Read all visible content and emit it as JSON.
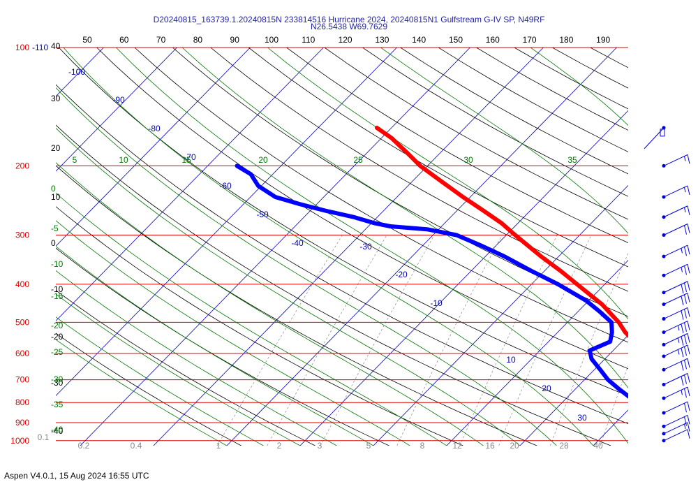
{
  "title_line1": "D20240815_163739.1.20240815N 233814516 Hurricane 2024, 20240815N1 Gulfstream G-IV SP, N49RF",
  "title_line2": "N26.5438 W69.7629",
  "footer": "Aspen V4.0.1, 15 Aug 2024  16:55 UTC",
  "colors": {
    "isobar": "#dd0000",
    "isotherm": "#0000bb",
    "dry_adiabat": "#000000",
    "moist_adiabat": "#007700",
    "mixing_ratio": "#888888",
    "temperature_trace": "#ff0000",
    "dewpoint_trace": "#0000ff",
    "wind_barb": "#0000dd"
  },
  "chart_data": {
    "type": "skew-t",
    "x_axis_top_labels": [
      "50",
      "60",
      "70",
      "80",
      "90",
      "100",
      "110",
      "120",
      "130",
      "140",
      "150",
      "160",
      "170",
      "180",
      "190"
    ],
    "isobars": [
      {
        "p": 100,
        "label": "100",
        "h_label": "-110"
      },
      {
        "p": 200,
        "label": "200"
      },
      {
        "p": 300,
        "label": "300"
      },
      {
        "p": 400,
        "label": "400"
      },
      {
        "p": 500,
        "label": "500"
      },
      {
        "p": 600,
        "label": "600"
      },
      {
        "p": 700,
        "label": "700"
      },
      {
        "p": 800,
        "label": "800"
      },
      {
        "p": 900,
        "label": "900"
      },
      {
        "p": 1000,
        "label": "1000"
      }
    ],
    "isotherm_labels": [
      {
        "t": -100,
        "label": "-100"
      },
      {
        "t": -90,
        "label": "-90"
      },
      {
        "t": -80,
        "label": "-80"
      },
      {
        "t": -70,
        "label": "-70"
      },
      {
        "t": -60,
        "label": "-60"
      },
      {
        "t": -50,
        "label": "-50"
      },
      {
        "t": -40,
        "label": "-40"
      },
      {
        "t": -30,
        "label": "-30"
      },
      {
        "t": -20,
        "label": "-20"
      },
      {
        "t": -10,
        "label": "-10"
      },
      {
        "t": 10,
        "label": "10"
      },
      {
        "t": 20,
        "label": "20"
      },
      {
        "t": 30,
        "label": "30"
      }
    ],
    "left_labels_black": [
      "40",
      "30",
      "20",
      "10",
      "0",
      "-10",
      "-20",
      "-30",
      "-40"
    ],
    "left_labels_green": [
      "0",
      "-5",
      "-10",
      "-15",
      "-20",
      "-25",
      "-30",
      "-35",
      "-40"
    ],
    "moist_adiabat_top_labels": [
      "5",
      "10",
      "15",
      "20",
      "25",
      "30",
      "35"
    ],
    "mixing_ratio_labels": [
      "0.1",
      "0.2",
      "0.4",
      "1",
      "2",
      "3",
      "5",
      "8",
      "12",
      "16",
      "20",
      "28",
      "40"
    ],
    "temperature": [
      {
        "p": 1000,
        "t": 26.0
      },
      {
        "p": 985,
        "t": 25.0
      },
      {
        "p": 960,
        "t": 24.4
      },
      {
        "p": 925,
        "t": 23.6
      },
      {
        "p": 900,
        "t": 21.8
      },
      {
        "p": 860,
        "t": 19.5
      },
      {
        "p": 820,
        "t": 17.4
      },
      {
        "p": 780,
        "t": 15.0
      },
      {
        "p": 740,
        "t": 12.4
      },
      {
        "p": 700,
        "t": 10.2
      },
      {
        "p": 660,
        "t": 8.0
      },
      {
        "p": 620,
        "t": 5.8
      },
      {
        "p": 600,
        "t": 5.0
      },
      {
        "p": 585,
        "t": 4.3
      },
      {
        "p": 570,
        "t": 2.6
      },
      {
        "p": 530,
        "t": -0.8
      },
      {
        "p": 500,
        "t": -3.0
      },
      {
        "p": 450,
        "t": -7.7
      },
      {
        "p": 400,
        "t": -13.8
      },
      {
        "p": 370,
        "t": -17.8
      },
      {
        "p": 340,
        "t": -22.4
      },
      {
        "p": 300,
        "t": -28.8
      },
      {
        "p": 280,
        "t": -32.2
      },
      {
        "p": 260,
        "t": -36.4
      },
      {
        "p": 240,
        "t": -41.0
      },
      {
        "p": 220,
        "t": -45.8
      },
      {
        "p": 200,
        "t": -51.0
      },
      {
        "p": 185,
        "t": -54.6
      },
      {
        "p": 170,
        "t": -58.6
      },
      {
        "p": 160,
        "t": -62.0
      }
    ],
    "dewpoint": [
      {
        "p": 1000,
        "t": 22.0
      },
      {
        "p": 985,
        "t": 21.0
      },
      {
        "p": 960,
        "t": 19.8
      },
      {
        "p": 930,
        "t": 18.6
      },
      {
        "p": 900,
        "t": 16.2
      },
      {
        "p": 860,
        "t": 14.0
      },
      {
        "p": 820,
        "t": 11.4
      },
      {
        "p": 780,
        "t": 8.8
      },
      {
        "p": 740,
        "t": 6.0
      },
      {
        "p": 700,
        "t": 3.2
      },
      {
        "p": 660,
        "t": 0.8
      },
      {
        "p": 620,
        "t": -1.8
      },
      {
        "p": 590,
        "t": -3.2
      },
      {
        "p": 560,
        "t": -1.6
      },
      {
        "p": 530,
        "t": -2.6
      },
      {
        "p": 500,
        "t": -4.0
      },
      {
        "p": 470,
        "t": -7.0
      },
      {
        "p": 440,
        "t": -10.4
      },
      {
        "p": 400,
        "t": -16.4
      },
      {
        "p": 370,
        "t": -21.8
      },
      {
        "p": 340,
        "t": -27.4
      },
      {
        "p": 320,
        "t": -31.8
      },
      {
        "p": 300,
        "t": -36.8
      },
      {
        "p": 290,
        "t": -41.6
      },
      {
        "p": 285,
        "t": -47.0
      },
      {
        "p": 280,
        "t": -49.5
      },
      {
        "p": 270,
        "t": -53.2
      },
      {
        "p": 260,
        "t": -58.0
      },
      {
        "p": 250,
        "t": -62.4
      },
      {
        "p": 240,
        "t": -66.6
      },
      {
        "p": 225,
        "t": -70.4
      },
      {
        "p": 210,
        "t": -73.0
      },
      {
        "p": 200,
        "t": -76.0
      }
    ],
    "wind_barbs": [
      {
        "p": 160,
        "speed": 10,
        "flag": "calm"
      },
      {
        "p": 200,
        "speed": 15
      },
      {
        "p": 240,
        "speed": 15
      },
      {
        "p": 270,
        "speed": 15
      },
      {
        "p": 300,
        "speed": 20
      },
      {
        "p": 340,
        "speed": 25
      },
      {
        "p": 380,
        "speed": 25
      },
      {
        "p": 420,
        "speed": 30
      },
      {
        "p": 450,
        "speed": 30
      },
      {
        "p": 490,
        "speed": 30
      },
      {
        "p": 530,
        "speed": 35
      },
      {
        "p": 570,
        "speed": 35
      },
      {
        "p": 610,
        "speed": 35
      },
      {
        "p": 660,
        "speed": 30
      },
      {
        "p": 720,
        "speed": 30
      },
      {
        "p": 780,
        "speed": 25
      },
      {
        "p": 850,
        "speed": 20
      },
      {
        "p": 920,
        "speed": 20
      },
      {
        "p": 960,
        "speed": 15
      },
      {
        "p": 1000,
        "speed": 10
      }
    ]
  }
}
